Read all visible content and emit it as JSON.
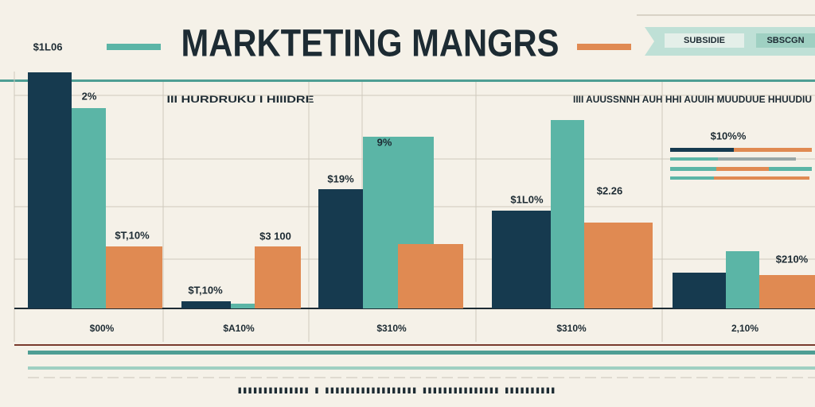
{
  "chart_data": {
    "type": "bar",
    "title": "MARKTETING MANGRS",
    "header_tabs": [
      "SUBSIDIE",
      "SBSCGN"
    ],
    "subtitles": [
      "III HURDRUKU I HIIIDRE",
      "IIII AUUSSNNH AUH HHI AUUIH MUUDUUE HHUUDIU"
    ],
    "footer": "IIIIIIIIIIIIII I IIIIIIIIIIIIIIIIII IIIIIIIIIIIIIII IIIIIIIIII",
    "categories": [
      "$00%",
      "$A10%",
      "$310%",
      "$310%",
      "2,10%"
    ],
    "series": [
      {
        "color": "#163a4f",
        "values": [
          99,
          3,
          50,
          41,
          15
        ]
      },
      {
        "color": "#5bb5a6",
        "values": [
          84,
          2,
          72,
          79,
          24
        ]
      },
      {
        "color": "#e08a52",
        "values": [
          26,
          26,
          27,
          36,
          14
        ]
      }
    ],
    "ylim": [
      0,
      100
    ],
    "annotations": [
      "$1L06",
      "2%",
      "$T,10%",
      "$T,10%",
      "$3 100",
      "$19%",
      "9%",
      "$1L0%",
      "$2.26",
      "$10%%",
      "$210%"
    ]
  }
}
